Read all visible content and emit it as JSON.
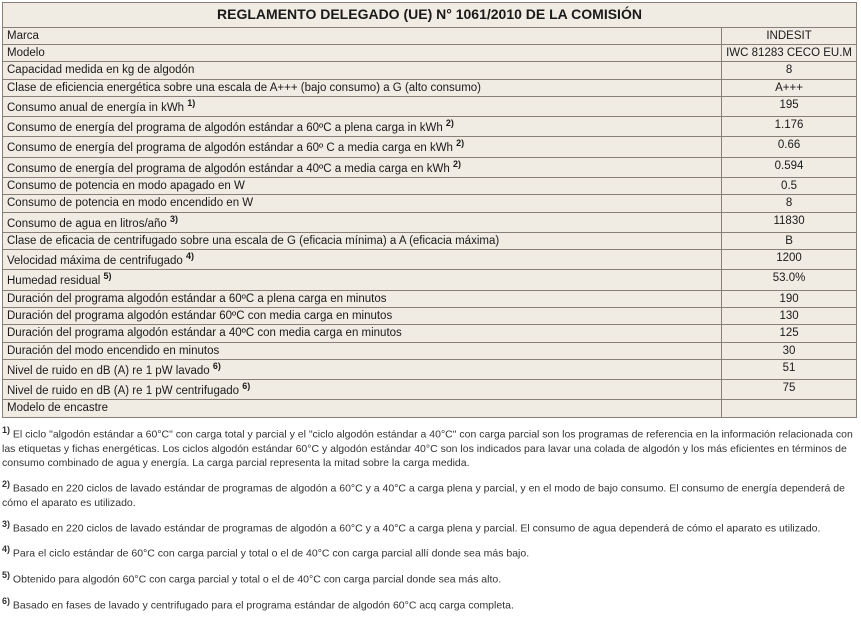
{
  "title": "REGLAMENTO DELEGADO (UE) N° 1061/2010 DE LA COMISIÓN",
  "colors": {
    "table_bg": "#f1ece3",
    "border": "#888078",
    "text": "#1a1a1a",
    "footnote_text": "#333333"
  },
  "rows": [
    {
      "label": "Marca",
      "sup": "",
      "value": "INDESIT"
    },
    {
      "label": "Modelo",
      "sup": "",
      "value": "IWC 81283 CECO EU.M"
    },
    {
      "label": "Capacidad medida en kg de algodón",
      "sup": "",
      "value": "8"
    },
    {
      "label": "Clase de eficiencia energética sobre una escala de A+++ (bajo consumo) a G (alto consumo)",
      "sup": "",
      "value": "A+++"
    },
    {
      "label": "Consumo anual de energía in kWh ",
      "sup": "1)",
      "value": "195"
    },
    {
      "label": "Consumo de energía del programa de algodón estándar a 60ºC a plena carga in kWh ",
      "sup": "2)",
      "value": "1.176"
    },
    {
      "label": "Consumo de energía del programa de algodón estándar a 60º C a media carga en kWh ",
      "sup": "2)",
      "value": "0.66"
    },
    {
      "label": "Consumo de energía del programa de algodón estándar a 40ºC a media carga en kWh ",
      "sup": "2)",
      "value": "0.594"
    },
    {
      "label": "Consumo de potencia en modo apagado en W",
      "sup": "",
      "value": "0.5"
    },
    {
      "label": "Consumo de potencia en modo encendido en W",
      "sup": "",
      "value": "8"
    },
    {
      "label": "Consumo de agua en litros/año ",
      "sup": "3)",
      "value": "11830"
    },
    {
      "label": "Clase de eficacia de centrifugado sobre una escala de G (eficacia mínima) a A (eficacia máxima)",
      "sup": "",
      "value": "B"
    },
    {
      "label": "Velocidad máxima de centrifugado ",
      "sup": "4)",
      "value": "1200"
    },
    {
      "label": "Humedad residual ",
      "sup": "5)",
      "value": "53.0%"
    },
    {
      "label": "Duración del programa algodón estándar a 60ºC a plena carga en minutos",
      "sup": "",
      "value": "190"
    },
    {
      "label": "Duración del programa algodón estándar 60ºC con media carga en minutos",
      "sup": "",
      "value": "130"
    },
    {
      "label": "Duración del programa algodón estándar a 40ºC con media carga en minutos",
      "sup": "",
      "value": "125"
    },
    {
      "label": "Duración del modo encendido en minutos",
      "sup": "",
      "value": "30"
    },
    {
      "label": "Nivel de ruido en dB (A) re 1 pW lavado ",
      "sup": "6)",
      "value": "51"
    },
    {
      "label": "Nivel de ruido en dB (A) re 1 pW centrifugado ",
      "sup": "6)",
      "value": "75"
    },
    {
      "label": "Modelo de encastre",
      "sup": "",
      "value": ""
    }
  ],
  "footnotes": [
    {
      "num": "1)",
      "text": "El ciclo \"algodón estándar a 60°C\" con carga total y parcial y el \"ciclo algodón estándar a 40°C\" con carga parcial son los programas de referencia en la información relacionada con las etiquetas y fichas energéticas. Los ciclos algodón estándar 60°C y algodón estándar 40°C son los indicados para lavar una colada de algodón y los más eficientes en términos de consumo combinado de agua y energía. La carga parcial representa la mitad sobre la carga medida."
    },
    {
      "num": "2)",
      "text": "Basado en 220 ciclos de lavado estándar de programas de algodón a 60°C y a 40°C a carga plena y parcial, y en el modo de bajo consumo. El consumo de energía dependerá de cómo el aparato es utilizado."
    },
    {
      "num": "3)",
      "text": "Basado en 220 ciclos de lavado estándar de programas de algodón a 60°C y a 40°C a carga plena y parcial. El consumo de agua dependerá de cómo el aparato es utilizado."
    },
    {
      "num": "4)",
      "text": "Para el ciclo estándar de 60°C con carga parcial y total o el de 40°C con carga parcial allí donde sea más bajo."
    },
    {
      "num": "5)",
      "text": "Obtenido para algodón 60°C con carga parcial y total o el de 40°C con carga parcial donde sea más alto."
    },
    {
      "num": "6)",
      "text": "Basado en fases de lavado y centrifugado para el programa estándar de algodón 60°C acq carga completa."
    }
  ]
}
